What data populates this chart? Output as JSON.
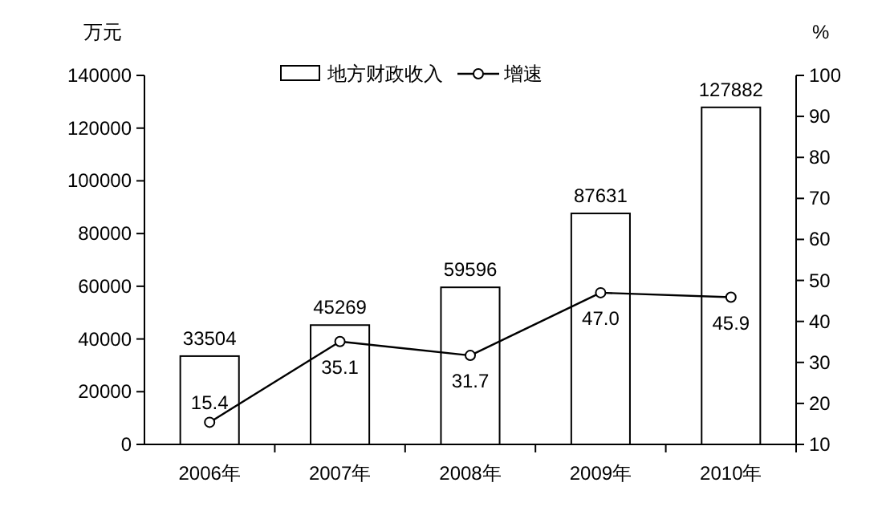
{
  "chart_data": {
    "type": "bar",
    "categories": [
      "2006年",
      "2007年",
      "2008年",
      "2009年",
      "2010年"
    ],
    "ylabel": "万元",
    "y2label": "%",
    "series": [
      {
        "name": "地方财政收入",
        "color": "#ffffff",
        "values": [
          33504,
          45269,
          59596,
          87631,
          127882
        ]
      },
      {
        "name": "增速",
        "type": "line",
        "axis": "y2",
        "color": "#000000",
        "marker": "circle",
        "values": [
          15.4,
          35.1,
          31.7,
          47.0,
          45.9
        ],
        "value_labels": [
          "15.4",
          "35.1",
          "31.7",
          "47.0",
          "45.9"
        ]
      }
    ],
    "ylim": [
      0,
      140000
    ],
    "yticks": [
      0,
      20000,
      40000,
      60000,
      80000,
      100000,
      120000,
      140000
    ],
    "y2lim": [
      10,
      100
    ],
    "y2ticks": [
      10,
      20,
      30,
      40,
      50,
      60,
      70,
      80,
      90,
      100
    ],
    "data_labels": true,
    "legend": "top",
    "grid": false
  }
}
